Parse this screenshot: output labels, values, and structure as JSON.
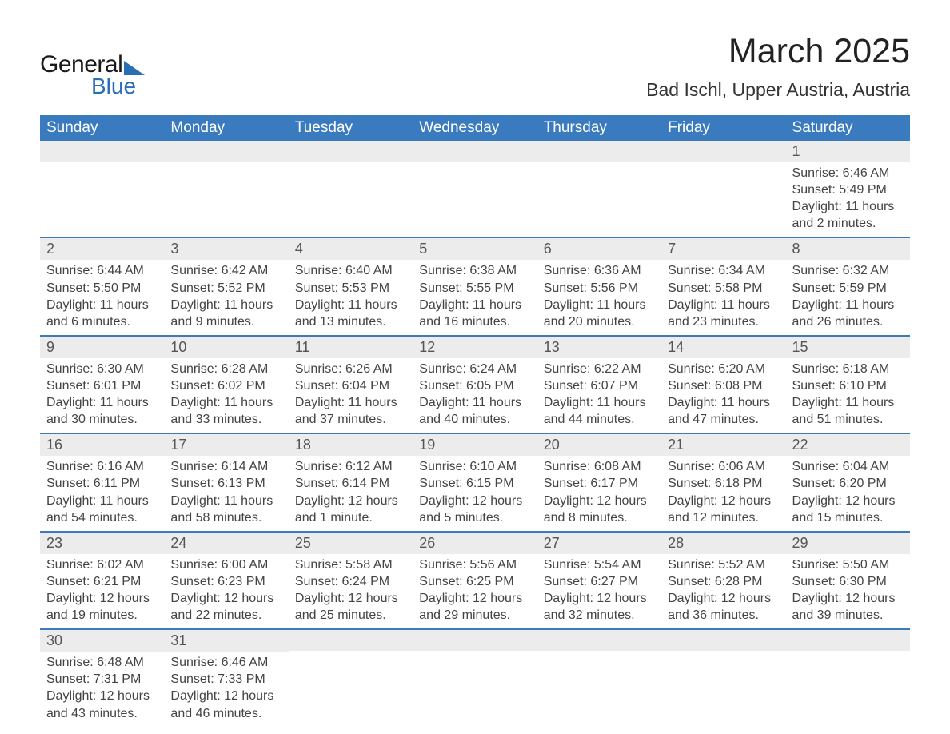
{
  "logo": {
    "text1": "General",
    "text2": "Blue"
  },
  "title": "March 2025",
  "location": "Bad Ischl, Upper Austria, Austria",
  "theme": {
    "header_bg": "#3a7bbf",
    "header_text": "#ffffff",
    "daynum_bg": "#ececec",
    "row_divider": "#3a7bbf",
    "body_text": "#444444",
    "title_text": "#222222",
    "logo_accent": "#2a6fb5",
    "page_bg": "#ffffff",
    "title_fontsize_pt": 32,
    "location_fontsize_pt": 17,
    "header_fontsize_pt": 14,
    "body_fontsize_pt": 12
  },
  "columns": [
    "Sunday",
    "Monday",
    "Tuesday",
    "Wednesday",
    "Thursday",
    "Friday",
    "Saturday"
  ],
  "labels": {
    "sunrise": "Sunrise",
    "sunset": "Sunset",
    "daylight": "Daylight"
  },
  "weeks": [
    [
      null,
      null,
      null,
      null,
      null,
      null,
      {
        "n": "1",
        "sunrise": "6:46 AM",
        "sunset": "5:49 PM",
        "daylight": "11 hours and 2 minutes."
      }
    ],
    [
      {
        "n": "2",
        "sunrise": "6:44 AM",
        "sunset": "5:50 PM",
        "daylight": "11 hours and 6 minutes."
      },
      {
        "n": "3",
        "sunrise": "6:42 AM",
        "sunset": "5:52 PM",
        "daylight": "11 hours and 9 minutes."
      },
      {
        "n": "4",
        "sunrise": "6:40 AM",
        "sunset": "5:53 PM",
        "daylight": "11 hours and 13 minutes."
      },
      {
        "n": "5",
        "sunrise": "6:38 AM",
        "sunset": "5:55 PM",
        "daylight": "11 hours and 16 minutes."
      },
      {
        "n": "6",
        "sunrise": "6:36 AM",
        "sunset": "5:56 PM",
        "daylight": "11 hours and 20 minutes."
      },
      {
        "n": "7",
        "sunrise": "6:34 AM",
        "sunset": "5:58 PM",
        "daylight": "11 hours and 23 minutes."
      },
      {
        "n": "8",
        "sunrise": "6:32 AM",
        "sunset": "5:59 PM",
        "daylight": "11 hours and 26 minutes."
      }
    ],
    [
      {
        "n": "9",
        "sunrise": "6:30 AM",
        "sunset": "6:01 PM",
        "daylight": "11 hours and 30 minutes."
      },
      {
        "n": "10",
        "sunrise": "6:28 AM",
        "sunset": "6:02 PM",
        "daylight": "11 hours and 33 minutes."
      },
      {
        "n": "11",
        "sunrise": "6:26 AM",
        "sunset": "6:04 PM",
        "daylight": "11 hours and 37 minutes."
      },
      {
        "n": "12",
        "sunrise": "6:24 AM",
        "sunset": "6:05 PM",
        "daylight": "11 hours and 40 minutes."
      },
      {
        "n": "13",
        "sunrise": "6:22 AM",
        "sunset": "6:07 PM",
        "daylight": "11 hours and 44 minutes."
      },
      {
        "n": "14",
        "sunrise": "6:20 AM",
        "sunset": "6:08 PM",
        "daylight": "11 hours and 47 minutes."
      },
      {
        "n": "15",
        "sunrise": "6:18 AM",
        "sunset": "6:10 PM",
        "daylight": "11 hours and 51 minutes."
      }
    ],
    [
      {
        "n": "16",
        "sunrise": "6:16 AM",
        "sunset": "6:11 PM",
        "daylight": "11 hours and 54 minutes."
      },
      {
        "n": "17",
        "sunrise": "6:14 AM",
        "sunset": "6:13 PM",
        "daylight": "11 hours and 58 minutes."
      },
      {
        "n": "18",
        "sunrise": "6:12 AM",
        "sunset": "6:14 PM",
        "daylight": "12 hours and 1 minute."
      },
      {
        "n": "19",
        "sunrise": "6:10 AM",
        "sunset": "6:15 PM",
        "daylight": "12 hours and 5 minutes."
      },
      {
        "n": "20",
        "sunrise": "6:08 AM",
        "sunset": "6:17 PM",
        "daylight": "12 hours and 8 minutes."
      },
      {
        "n": "21",
        "sunrise": "6:06 AM",
        "sunset": "6:18 PM",
        "daylight": "12 hours and 12 minutes."
      },
      {
        "n": "22",
        "sunrise": "6:04 AM",
        "sunset": "6:20 PM",
        "daylight": "12 hours and 15 minutes."
      }
    ],
    [
      {
        "n": "23",
        "sunrise": "6:02 AM",
        "sunset": "6:21 PM",
        "daylight": "12 hours and 19 minutes."
      },
      {
        "n": "24",
        "sunrise": "6:00 AM",
        "sunset": "6:23 PM",
        "daylight": "12 hours and 22 minutes."
      },
      {
        "n": "25",
        "sunrise": "5:58 AM",
        "sunset": "6:24 PM",
        "daylight": "12 hours and 25 minutes."
      },
      {
        "n": "26",
        "sunrise": "5:56 AM",
        "sunset": "6:25 PM",
        "daylight": "12 hours and 29 minutes."
      },
      {
        "n": "27",
        "sunrise": "5:54 AM",
        "sunset": "6:27 PM",
        "daylight": "12 hours and 32 minutes."
      },
      {
        "n": "28",
        "sunrise": "5:52 AM",
        "sunset": "6:28 PM",
        "daylight": "12 hours and 36 minutes."
      },
      {
        "n": "29",
        "sunrise": "5:50 AM",
        "sunset": "6:30 PM",
        "daylight": "12 hours and 39 minutes."
      }
    ],
    [
      {
        "n": "30",
        "sunrise": "6:48 AM",
        "sunset": "7:31 PM",
        "daylight": "12 hours and 43 minutes."
      },
      {
        "n": "31",
        "sunrise": "6:46 AM",
        "sunset": "7:33 PM",
        "daylight": "12 hours and 46 minutes."
      },
      null,
      null,
      null,
      null,
      null
    ]
  ]
}
